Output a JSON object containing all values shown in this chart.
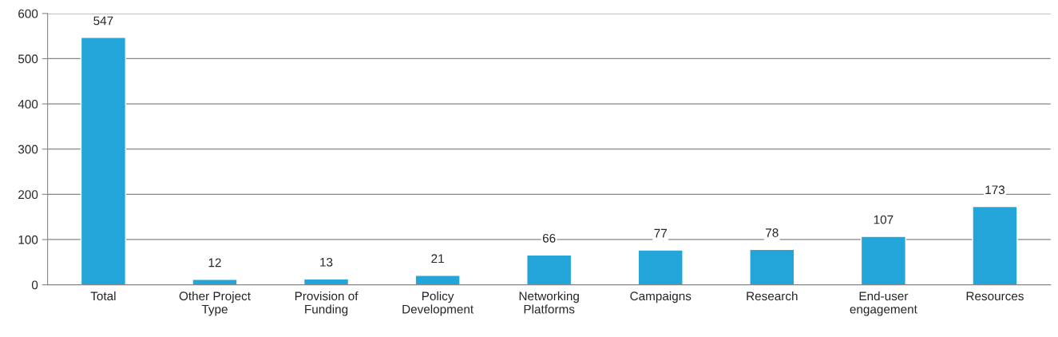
{
  "chart_data": {
    "type": "bar",
    "categories": [
      "Total",
      "Other Project Type",
      "Provision of Funding",
      "Policy Development",
      "Networking Platforms",
      "Campaigns",
      "Research",
      "End-user engagement",
      "Resources"
    ],
    "values": [
      547,
      12,
      13,
      21,
      66,
      77,
      78,
      107,
      173
    ],
    "color": "#24a5da",
    "ylim": [
      0,
      600
    ],
    "yticks": [
      0,
      100,
      200,
      300,
      400,
      500,
      600
    ],
    "grid": "y",
    "data_labels": true
  }
}
